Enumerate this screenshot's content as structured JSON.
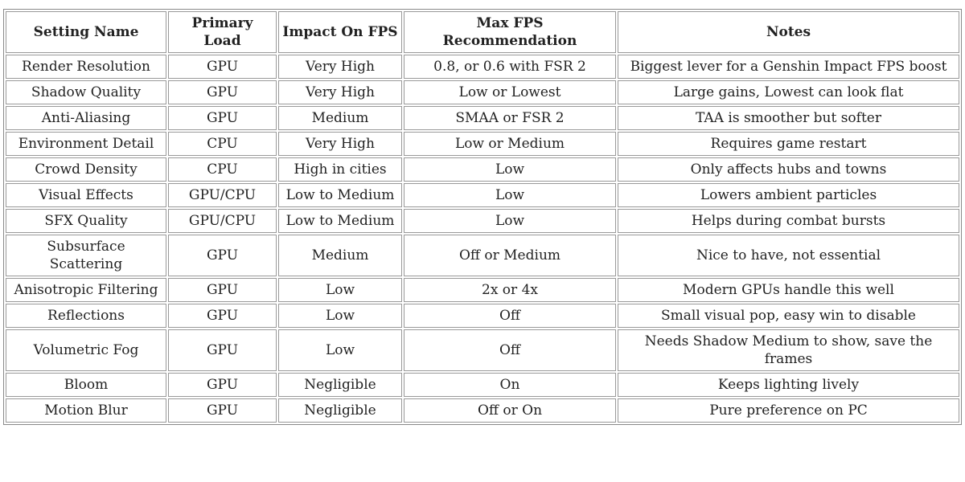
{
  "table": {
    "header": [
      "Setting Name",
      "Primary Load",
      "Impact On FPS",
      "Max FPS Recommendation",
      "Notes"
    ],
    "rows": [
      [
        "Render Resolution",
        "GPU",
        "Very High",
        "0.8, or 0.6 with FSR 2",
        "Biggest lever for a Genshin Impact FPS boost"
      ],
      [
        "Shadow Quality",
        "GPU",
        "Very High",
        "Low or Lowest",
        "Large gains, Lowest can look flat"
      ],
      [
        "Anti-Aliasing",
        "GPU",
        "Medium",
        "SMAA or FSR 2",
        "TAA is smoother but softer"
      ],
      [
        "Environment Detail",
        "CPU",
        "Very High",
        "Low or Medium",
        "Requires game restart"
      ],
      [
        "Crowd Density",
        "CPU",
        "High in cities",
        "Low",
        "Only affects hubs and towns"
      ],
      [
        "Visual Effects",
        "GPU/CPU",
        "Low to Medium",
        "Low",
        "Lowers ambient particles"
      ],
      [
        "SFX Quality",
        "GPU/CPU",
        "Low to Medium",
        "Low",
        "Helps during combat bursts"
      ],
      [
        "Subsurface Scattering",
        "GPU",
        "Medium",
        "Off or Medium",
        "Nice to have, not essential"
      ],
      [
        "Anisotropic Filtering",
        "GPU",
        "Low",
        "2x or 4x",
        "Modern GPUs handle this well"
      ],
      [
        "Reflections",
        "GPU",
        "Low",
        "Off",
        "Small visual pop, easy win to disable"
      ],
      [
        "Volumetric Fog",
        "GPU",
        "Low",
        "Off",
        "Needs Shadow Medium to show, save the frames"
      ],
      [
        "Bloom",
        "GPU",
        "Negligible",
        "On",
        "Keeps lighting lively"
      ],
      [
        "Motion Blur",
        "GPU",
        "Negligible",
        "Off or On",
        "Pure preference on PC"
      ]
    ]
  }
}
